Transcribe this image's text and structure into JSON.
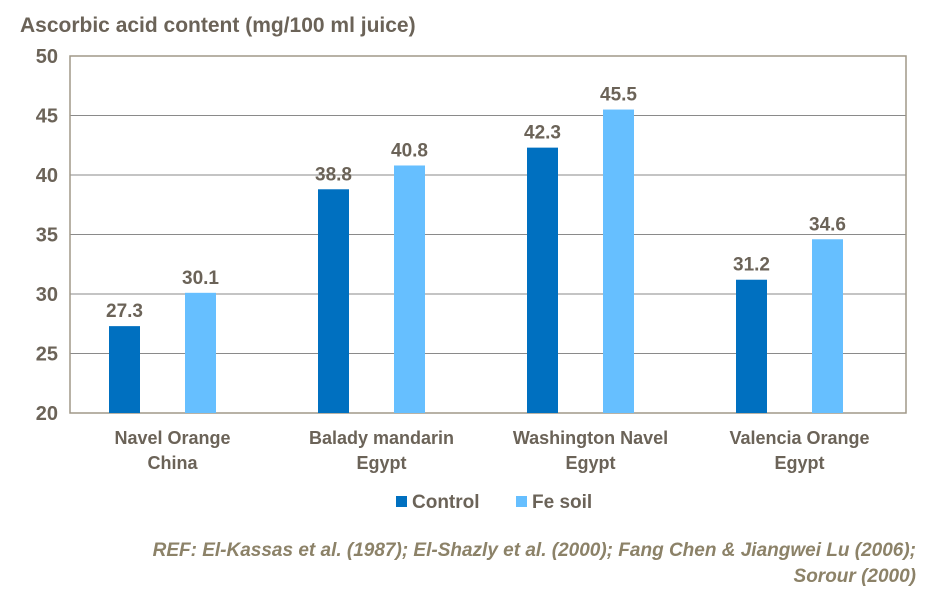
{
  "chart_data": {
    "type": "bar",
    "title": "Ascorbic acid content (mg/100 ml juice)",
    "xlabel": "",
    "ylabel": "Ascorbic acid content (mg/100 ml juice)",
    "ylim": [
      20,
      50
    ],
    "yticks": [
      20,
      25,
      30,
      35,
      40,
      45,
      50
    ],
    "categories": [
      [
        "Navel Orange",
        "China"
      ],
      [
        "Balady mandarin",
        "Egypt"
      ],
      [
        "Washington Navel",
        "Egypt"
      ],
      [
        "Valencia Orange",
        "Egypt"
      ]
    ],
    "series": [
      {
        "name": "Control",
        "color": "#0070c0",
        "values": [
          27.3,
          38.8,
          42.3,
          31.2
        ]
      },
      {
        "name": "Fe soil",
        "color": "#66bfff",
        "values": [
          30.1,
          40.8,
          45.5,
          34.6
        ]
      }
    ],
    "legend_position": "bottom",
    "grid": true
  },
  "reference": {
    "line1": "REF: El-Kassas et al. (1987); El-Shazly et al. (2000); Fang Chen & Jiangwei Lu (2006);",
    "line2": "Sorour (2000)"
  },
  "colors": {
    "text": "#6b6358",
    "reference": "#8c8268",
    "grid": "#8a8a8a",
    "frame": "#a09888"
  }
}
